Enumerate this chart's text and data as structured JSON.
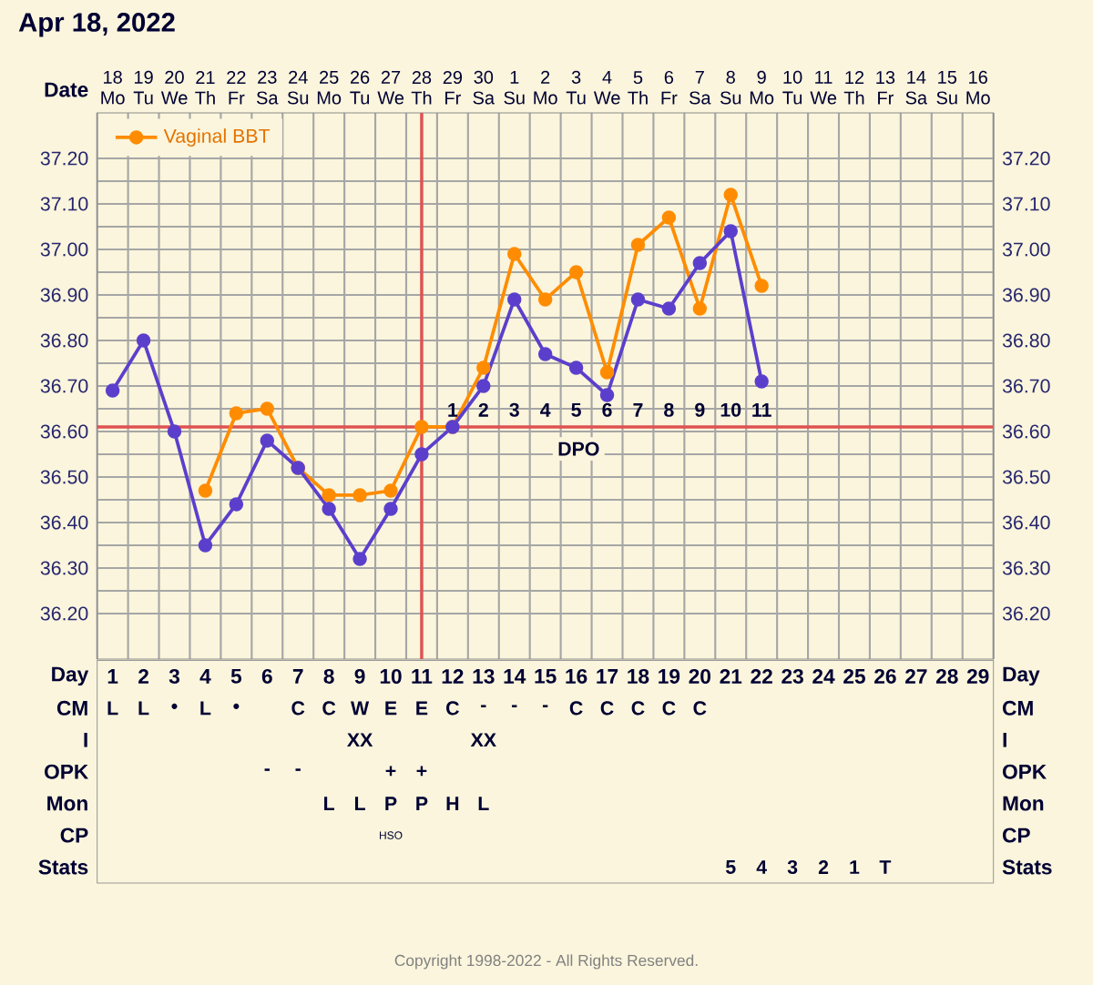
{
  "chart_data": [
    {
      "type": "line",
      "title": "Apr 18, 2022",
      "xlabel": "Date",
      "categories": [
        "18 Mo",
        "19 Tu",
        "20 We",
        "21 Th",
        "22 Fr",
        "23 Sa",
        "24 Su",
        "25 Mo",
        "26 Tu",
        "27 We",
        "28 Th",
        "29 Fr",
        "30 Sa",
        "1 Su",
        "2 Mo",
        "3 Tu",
        "4 We",
        "5 Th",
        "6 Fr",
        "7 Sa",
        "8 Su",
        "9 Mo",
        "10 Tu",
        "11 We",
        "12 Th",
        "13 Fr",
        "14 Sa",
        "15 Su",
        "16 Mo"
      ],
      "series": [
        {
          "color": "#5b3fcc",
          "values": [
            36.69,
            36.8,
            36.6,
            36.35,
            36.44,
            36.58,
            36.52,
            36.43,
            36.32,
            36.43,
            36.55,
            36.61,
            36.7,
            36.89,
            36.77,
            36.74,
            36.68,
            36.89,
            36.87,
            36.97,
            37.04,
            36.71,
            null,
            null,
            null,
            null,
            null,
            null,
            null
          ]
        },
        {
          "name": "Vaginal BBT",
          "color": "#ff8c00",
          "values": [
            null,
            null,
            null,
            36.47,
            36.64,
            36.65,
            36.52,
            36.46,
            36.46,
            36.47,
            36.61,
            36.61,
            36.74,
            36.99,
            36.89,
            36.95,
            36.73,
            37.01,
            37.07,
            36.87,
            37.12,
            36.92,
            null,
            null,
            null,
            null,
            null,
            null,
            null
          ]
        }
      ],
      "ylim": [
        36.1,
        37.3
      ],
      "yticks": [
        {
          "value": 36.2,
          "label": "36.20"
        },
        {
          "value": 36.3,
          "label": "36.30"
        },
        {
          "value": 36.4,
          "label": "36.40"
        },
        {
          "value": 36.5,
          "label": "36.50"
        },
        {
          "value": 36.6,
          "label": "36.60"
        },
        {
          "value": 36.7,
          "label": "36.70"
        },
        {
          "value": 36.8,
          "label": "36.80"
        },
        {
          "value": 36.9,
          "label": "36.90"
        },
        {
          "value": 37.0,
          "label": "37.00"
        },
        {
          "value": 37.1,
          "label": "37.10"
        },
        {
          "value": 37.2,
          "label": "37.20"
        }
      ],
      "y2lim": [
        36.1,
        37.3
      ],
      "y2ticks": [
        {
          "value": 36.2,
          "label": "36.20"
        },
        {
          "value": 36.3,
          "label": "36.30"
        },
        {
          "value": 36.4,
          "label": "36.40"
        },
        {
          "value": 36.5,
          "label": "36.50"
        },
        {
          "value": 36.6,
          "label": "36.60"
        },
        {
          "value": 36.7,
          "label": "36.70"
        },
        {
          "value": 36.8,
          "label": "36.80"
        },
        {
          "value": 36.9,
          "label": "36.90"
        },
        {
          "value": 37.0,
          "label": "37.00"
        },
        {
          "value": 37.1,
          "label": "37.10"
        },
        {
          "value": 37.2,
          "label": "37.20"
        }
      ],
      "ref_lines": [
        {
          "axis": "x",
          "value": "28 Th",
          "color": "#e05252"
        },
        {
          "axis": "y",
          "value": 36.61,
          "label": "DPO",
          "color": "#e05252"
        }
      ],
      "annotations": [
        {
          "text": "1",
          "x": "29 Fr",
          "y": 36.61
        },
        {
          "text": "2",
          "x": "30 Sa",
          "y": 36.61
        },
        {
          "text": "3",
          "x": "1 Su",
          "y": 36.61
        },
        {
          "text": "4",
          "x": "2 Mo",
          "y": 36.61
        },
        {
          "text": "5",
          "x": "3 Tu",
          "y": 36.61
        },
        {
          "text": "6",
          "x": "4 We",
          "y": 36.61
        },
        {
          "text": "7",
          "x": "5 Th",
          "y": 36.61
        },
        {
          "text": "8",
          "x": "6 Fr",
          "y": 36.61
        },
        {
          "text": "9",
          "x": "7 Sa",
          "y": 36.61
        },
        {
          "text": "10",
          "x": "8 Su",
          "y": 36.61
        },
        {
          "text": "11",
          "x": "9 Mo",
          "y": 36.61
        },
        "Copyright 1998-2022 - All Rights Reserved."
      ],
      "grid": true,
      "legend": "top left",
      "marker": "circle",
      "line_style": "solid"
    },
    {
      "type": "heatmap",
      "xlabel": "Day",
      "categories": [
        "1",
        "2",
        "3",
        "4",
        "5",
        "6",
        "7",
        "8",
        "9",
        "10",
        "11",
        "12",
        "13",
        "14",
        "15",
        "16",
        "17",
        "18",
        "19",
        "20",
        "21",
        "22",
        "23",
        "24",
        "25",
        "26",
        "27",
        "28",
        "29"
      ],
      "y_categories": [
        "CM",
        "I",
        "OPK",
        "Mon",
        "CP",
        "Stats"
      ],
      "y2_categories": [
        "CM",
        "I",
        "OPK",
        "Mon",
        "CP",
        "Stats"
      ],
      "cells": [
        [
          null,
          null,
          null,
          null,
          null,
          null,
          null,
          null,
          null,
          null,
          null,
          null,
          null,
          null,
          null,
          null,
          null,
          null,
          null,
          null,
          null,
          null,
          null,
          null,
          null,
          null,
          null,
          null,
          null
        ],
        [
          null,
          null,
          null,
          null,
          null,
          null,
          null,
          null,
          null,
          null,
          null,
          null,
          null,
          null,
          null,
          null,
          null,
          null,
          null,
          null,
          null,
          null,
          null,
          null,
          null,
          null,
          null,
          null,
          null
        ],
        [
          null,
          null,
          null,
          null,
          null,
          null,
          null,
          null,
          null,
          null,
          null,
          null,
          null,
          null,
          null,
          null,
          null,
          null,
          null,
          null,
          null,
          null,
          null,
          null,
          null,
          null,
          null,
          null,
          null
        ],
        [
          null,
          null,
          null,
          null,
          null,
          null,
          null,
          null,
          null,
          null,
          null,
          null,
          null,
          null,
          null,
          null,
          null,
          null,
          null,
          null,
          null,
          null,
          null,
          null,
          null,
          null,
          null,
          null,
          null
        ],
        [
          null,
          null,
          null,
          null,
          null,
          null,
          null,
          null,
          null,
          null,
          null,
          null,
          null,
          null,
          null,
          null,
          null,
          null,
          null,
          null,
          null,
          null,
          null,
          null,
          null,
          null,
          null,
          null,
          null
        ],
        [
          null,
          null,
          null,
          null,
          null,
          null,
          null,
          null,
          null,
          null,
          null,
          null,
          null,
          null,
          null,
          null,
          null,
          null,
          null,
          null,
          null,
          null,
          null,
          null,
          null,
          null,
          null,
          null,
          null
        ]
      ],
      "cell_labels": [
        [
          "L",
          "L",
          "•",
          "L",
          "•",
          null,
          "C",
          "C",
          "W",
          "E",
          "E",
          "C",
          "-",
          "-",
          "-",
          "C",
          "C",
          "C",
          "C",
          "C",
          null,
          null,
          null,
          null,
          null,
          null,
          null,
          null,
          null
        ],
        [
          null,
          null,
          null,
          null,
          null,
          null,
          null,
          null,
          "XX",
          null,
          null,
          null,
          "XX",
          null,
          null,
          null,
          null,
          null,
          null,
          null,
          null,
          null,
          null,
          null,
          null,
          null,
          null,
          null,
          null
        ],
        [
          null,
          null,
          null,
          null,
          null,
          "-",
          "-",
          null,
          null,
          "+",
          "+",
          null,
          null,
          null,
          null,
          null,
          null,
          null,
          null,
          null,
          null,
          null,
          null,
          null,
          null,
          null,
          null,
          null,
          null
        ],
        [
          null,
          null,
          null,
          null,
          null,
          null,
          null,
          "L",
          "L",
          "P",
          "P",
          "H",
          "L",
          null,
          null,
          null,
          null,
          null,
          null,
          null,
          null,
          null,
          null,
          null,
          null,
          null,
          null,
          null,
          null
        ],
        [
          null,
          null,
          null,
          null,
          null,
          null,
          null,
          null,
          null,
          "HSO",
          null,
          null,
          null,
          null,
          null,
          null,
          null,
          null,
          null,
          null,
          null,
          null,
          null,
          null,
          null,
          null,
          null,
          null,
          null
        ],
        [
          null,
          null,
          null,
          null,
          null,
          null,
          null,
          null,
          null,
          null,
          null,
          null,
          null,
          null,
          null,
          null,
          null,
          null,
          null,
          null,
          "5",
          "4",
          "3",
          "2",
          "1",
          "T",
          null,
          null,
          null
        ]
      ]
    }
  ]
}
